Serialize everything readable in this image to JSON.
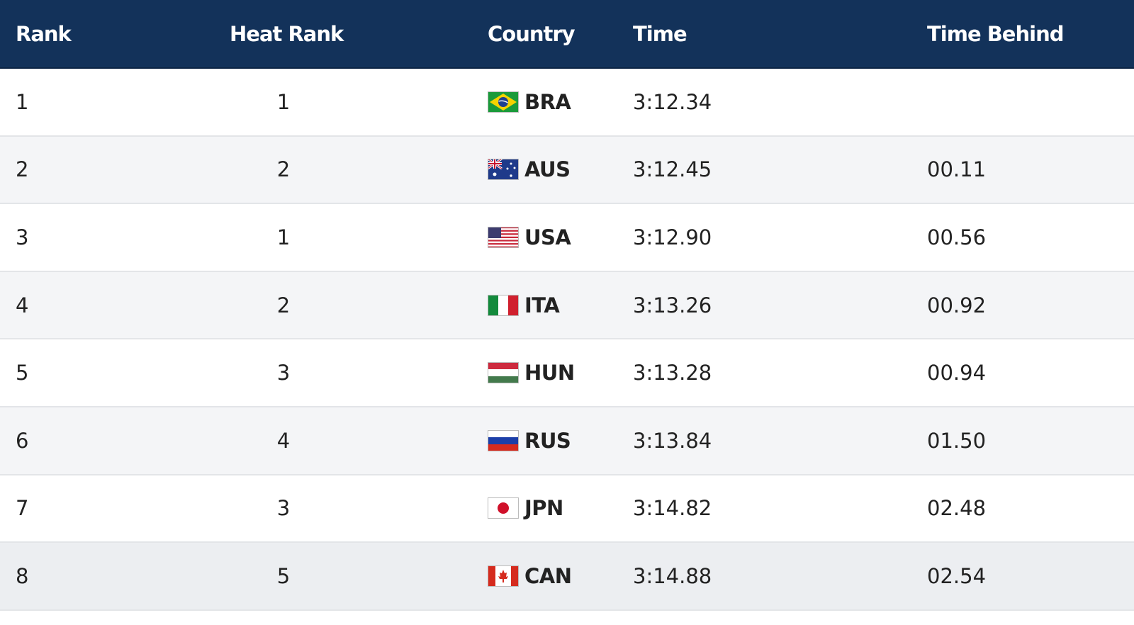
{
  "table": {
    "headers": [
      "Rank",
      "Heat Rank",
      "Country",
      "Time",
      "Time Behind"
    ],
    "rows": [
      {
        "rank": "1",
        "heat_rank": "1",
        "country": "BRA",
        "time": "3:12.34"
      },
      {
        "rank": "2",
        "heat_rank": "2",
        "country": "AUS",
        "time": "3:12.45",
        "time_behind": "00.11"
      },
      {
        "rank": "3",
        "heat_rank": "1",
        "country": "USA",
        "time": "3:12.90",
        "time_behind": "00.56"
      },
      {
        "rank": "4",
        "heat_rank": "2",
        "country": "ITA",
        "time": "3:13.26",
        "time_behind": "00.92"
      },
      {
        "rank": "5",
        "heat_rank": "3",
        "country": "HUN",
        "time": "3:13.28",
        "time_behind": "00.94"
      },
      {
        "rank": "6",
        "heat_rank": "4",
        "country": "RUS",
        "time": "3:13.84",
        "time_behind": "01.50"
      },
      {
        "rank": "7",
        "heat_rank": "3",
        "country": "JPN",
        "time": "3:14.82",
        "time_behind": "02.48"
      },
      {
        "rank": "8",
        "heat_rank": "5",
        "country": "CAN",
        "time": "3:14.88",
        "time_behind": "02.54"
      }
    ]
  }
}
